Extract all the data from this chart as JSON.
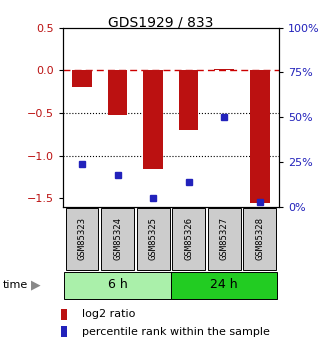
{
  "title": "GDS1929 / 833",
  "samples": [
    "GSM85323",
    "GSM85324",
    "GSM85325",
    "GSM85326",
    "GSM85327",
    "GSM85328"
  ],
  "log2_ratio": [
    -0.2,
    -0.52,
    -1.15,
    -0.7,
    0.02,
    -1.55
  ],
  "percentile_rank": [
    24,
    18,
    5,
    14,
    50,
    3
  ],
  "groups": [
    {
      "label": "6 h",
      "indices": [
        0,
        1,
        2
      ],
      "color": "#aaf0aa"
    },
    {
      "label": "24 h",
      "indices": [
        3,
        4,
        5
      ],
      "color": "#22cc22"
    }
  ],
  "bar_color": "#bb1111",
  "dot_color": "#2222bb",
  "ylim_left": [
    -1.6,
    0.5
  ],
  "ylim_right": [
    0,
    100
  ],
  "yticks_left": [
    -1.5,
    -1.0,
    -0.5,
    0.0,
    0.5
  ],
  "yticks_right": [
    0,
    25,
    50,
    75,
    100
  ],
  "hlines": [
    0.0,
    -0.5,
    -1.0
  ],
  "hline_styles": [
    "dashed",
    "dotted",
    "dotted"
  ],
  "hline_colors": [
    "#cc0000",
    "#000000",
    "#000000"
  ],
  "bg_color": "#ffffff",
  "bar_width": 0.55,
  "figsize": [
    3.21,
    3.45
  ],
  "dpi": 100
}
